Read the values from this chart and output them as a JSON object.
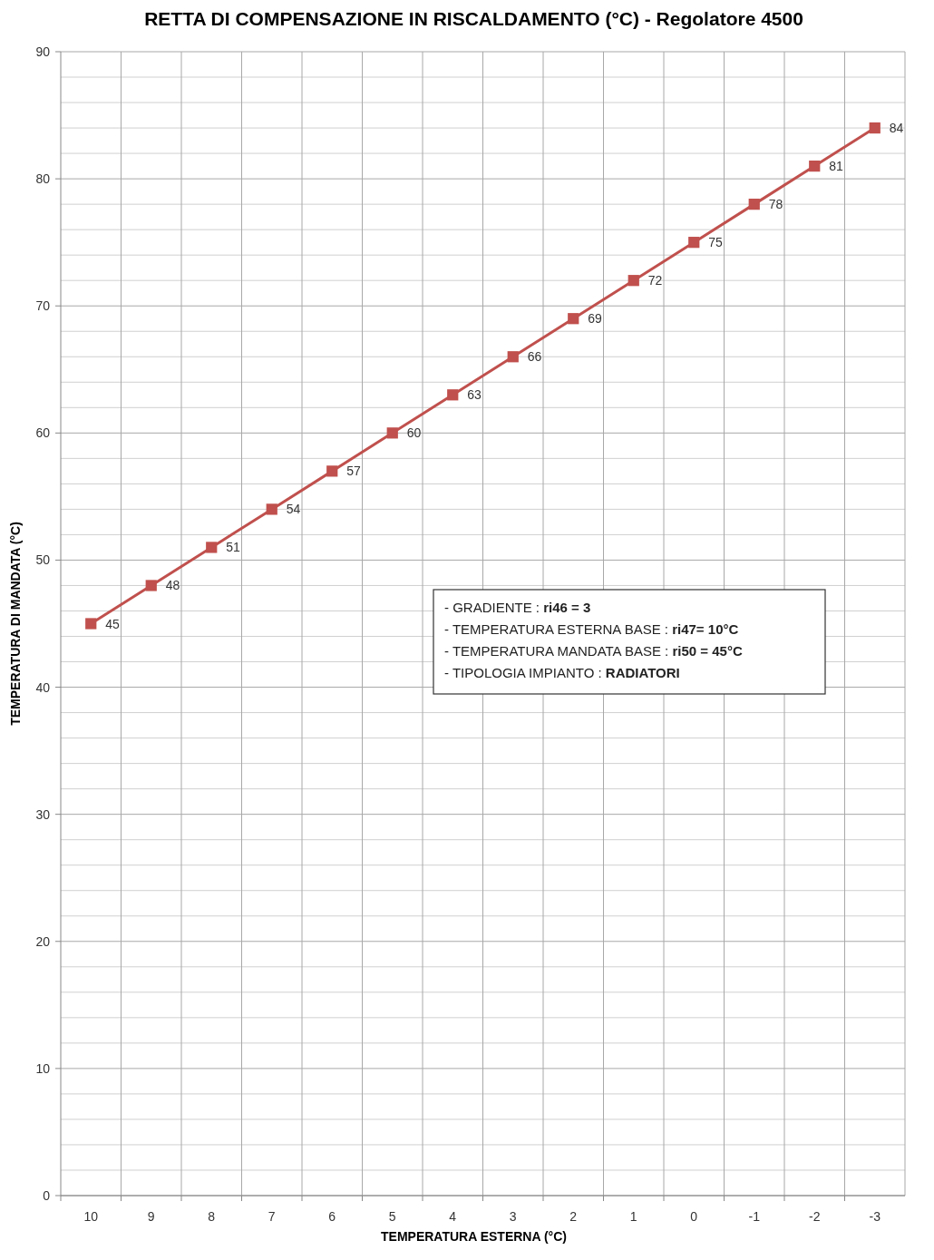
{
  "chart_data": {
    "type": "line",
    "title": "RETTA DI COMPENSAZIONE IN RISCALDAMENTO (°C) - Regolatore 4500",
    "xlabel": "TEMPERATURA ESTERNA (°C)",
    "ylabel": "TEMPERATURA DI MANDATA (°C)",
    "categories": [
      "10",
      "9",
      "8",
      "7",
      "6",
      "5",
      "4",
      "3",
      "2",
      "1",
      "0",
      "-1",
      "-2",
      "-3"
    ],
    "series": [
      {
        "color": "#c0504d",
        "values": [
          45,
          48,
          51,
          54,
          57,
          60,
          63,
          66,
          69,
          72,
          75,
          78,
          81,
          84
        ]
      }
    ],
    "ylim": [
      0,
      90
    ],
    "yticks": [
      0,
      {
        "value": 2,
        "label": null
      },
      {
        "value": 4,
        "label": null
      },
      {
        "value": 6,
        "label": null
      },
      {
        "value": 8,
        "label": null
      },
      10,
      {
        "value": 12,
        "label": null
      },
      {
        "value": 14,
        "label": null
      },
      {
        "value": 16,
        "label": null
      },
      {
        "value": 18,
        "label": null
      },
      20,
      {
        "value": 22,
        "label": null
      },
      {
        "value": 24,
        "label": null
      },
      {
        "value": 26,
        "label": null
      },
      {
        "value": 28,
        "label": null
      },
      30,
      {
        "value": 32,
        "label": null
      },
      {
        "value": 34,
        "label": null
      },
      {
        "value": 36,
        "label": null
      },
      {
        "value": 38,
        "label": null
      },
      40,
      {
        "value": 42,
        "label": null
      },
      {
        "value": 44,
        "label": null
      },
      {
        "value": 46,
        "label": null
      },
      {
        "value": 48,
        "label": null
      },
      50,
      {
        "value": 52,
        "label": null
      },
      {
        "value": 54,
        "label": null
      },
      {
        "value": 56,
        "label": null
      },
      {
        "value": 58,
        "label": null
      },
      60,
      {
        "value": 62,
        "label": null
      },
      {
        "value": 64,
        "label": null
      },
      {
        "value": 66,
        "label": null
      },
      {
        "value": 68,
        "label": null
      },
      70,
      {
        "value": 72,
        "label": null
      },
      {
        "value": 74,
        "label": null
      },
      {
        "value": 76,
        "label": null
      },
      {
        "value": 78,
        "label": null
      },
      80,
      {
        "value": 82,
        "label": null
      },
      {
        "value": 84,
        "label": null
      },
      {
        "value": 86,
        "label": null
      },
      {
        "value": 88,
        "label": null
      },
      90
    ],
    "grid": true,
    "marker": "square",
    "line_style": "solid",
    "data_labels": true,
    "annotations": [
      "- GRADIENTE : ri46 = 3",
      "- TEMPERATURA ESTERNA BASE : ri47= 10°C",
      "- TEMPERATURA MANDATA BASE : ri50 = 45°C",
      "- TIPOLOGIA IMPIANTO : RADIATORI"
    ]
  }
}
